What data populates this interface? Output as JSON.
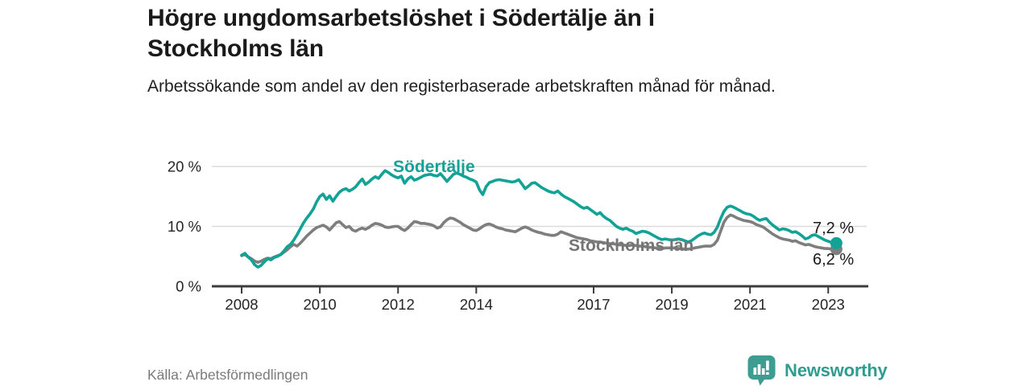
{
  "header": {
    "title": "Högre ungdomsarbetslöshet i Södertälje än i Stockholms län",
    "subtitle": "Arbetssökande som andel av den registerbaserade arbetskraften månad för månad."
  },
  "footer": {
    "source": "Källa: Arbetsförmedlingen",
    "brand_name": "Newsworthy",
    "brand_icon": "newsworthy-bar-chart-speech-bubble-icon"
  },
  "colors": {
    "sodertalje_line": "#12a296",
    "stockholm_line": "#7e7e7e",
    "stockholm_label": "#757575",
    "grid": "#dcdcdc",
    "axis": "#3c3c3c",
    "tick_text": "#242424",
    "title_text": "#1a1a1a",
    "source_text": "#7a7a7a",
    "brand_teal": "#2f9c90"
  },
  "chart_data": {
    "type": "line",
    "title": "Högre ungdomsarbetslöshet i Södertälje än i Stockholms län",
    "subtitle": "Arbetssökande som andel av den registerbaserade arbetskraften månad för månad.",
    "xlabel": "",
    "ylabel": "",
    "y_unit": "%",
    "grid": "horizontal",
    "legend_position": "inline-labels-on-lines",
    "ylim": [
      0,
      22
    ],
    "xlim": [
      2007.25,
      2024.0
    ],
    "x_start": 2008.0,
    "points_per_year": 12,
    "x_end": 2023.1667,
    "x_ticks": [
      "2008",
      "2010",
      "2012",
      "2014",
      "2017",
      "2019",
      "2021",
      "2023"
    ],
    "x_tick_years": [
      2008,
      2010,
      2012,
      2014,
      2017,
      2019,
      2021,
      2023
    ],
    "y_ticks": [
      {
        "value": 0,
        "label": "0 %"
      },
      {
        "value": 10,
        "label": "10 %"
      },
      {
        "value": 20,
        "label": "20 %"
      }
    ],
    "series": [
      {
        "name": "Södertälje",
        "color": "#12a296",
        "end_value": 7.2,
        "end_label": "7,2 %",
        "values": [
          5.2,
          5.5,
          4.9,
          4.4,
          3.6,
          3.2,
          3.5,
          4.1,
          4.6,
          4.4,
          4.8,
          5.0,
          5.3,
          5.9,
          6.6,
          7.0,
          7.7,
          8.6,
          9.6,
          10.6,
          11.4,
          12.1,
          12.9,
          14.1,
          15.0,
          15.4,
          14.5,
          15.1,
          14.2,
          15.0,
          15.7,
          16.1,
          16.3,
          15.9,
          16.2,
          16.6,
          17.3,
          17.9,
          17.0,
          17.4,
          17.9,
          18.3,
          18.0,
          18.7,
          19.3,
          19.0,
          18.6,
          18.3,
          18.1,
          18.4,
          17.2,
          17.9,
          18.3,
          17.7,
          17.9,
          18.2,
          18.5,
          18.6,
          18.7,
          18.5,
          18.4,
          18.8,
          18.2,
          17.5,
          18.1,
          18.7,
          18.9,
          18.7,
          18.4,
          18.2,
          17.9,
          17.7,
          17.4,
          16.1,
          15.3,
          16.6,
          17.3,
          17.5,
          17.7,
          17.8,
          17.7,
          17.6,
          17.5,
          17.4,
          17.5,
          17.8,
          17.1,
          16.3,
          16.7,
          17.2,
          17.3,
          16.9,
          16.5,
          16.2,
          15.9,
          15.7,
          15.6,
          15.9,
          15.4,
          15.0,
          14.7,
          14.4,
          14.1,
          13.7,
          13.3,
          13.0,
          13.2,
          12.8,
          12.4,
          12.0,
          12.3,
          11.7,
          11.3,
          11.0,
          10.5,
          10.0,
          9.7,
          9.5,
          9.7,
          9.4,
          9.2,
          8.8,
          9.0,
          9.2,
          9.1,
          8.9,
          8.6,
          8.3,
          8.0,
          7.8,
          7.9,
          7.8,
          7.7,
          7.8,
          7.9,
          7.8,
          7.6,
          7.4,
          7.6,
          8.0,
          8.4,
          8.7,
          8.9,
          8.7,
          8.6,
          9.0,
          9.9,
          11.3,
          12.5,
          13.2,
          13.4,
          13.2,
          12.9,
          12.6,
          12.3,
          12.1,
          12.0,
          11.7,
          11.3,
          11.0,
          11.2,
          11.3,
          10.7,
          10.2,
          9.8,
          9.4,
          9.6,
          9.5,
          9.3,
          9.0,
          9.1,
          8.8,
          8.4,
          7.9,
          8.1,
          8.5,
          8.6,
          8.3,
          8.0,
          7.7,
          7.5,
          7.3,
          7.2
        ]
      },
      {
        "name": "Stockholms län",
        "color": "#7e7e7e",
        "end_value": 6.2,
        "end_label": "6,2 %",
        "values": [
          5.1,
          5.3,
          4.9,
          4.6,
          4.2,
          4.0,
          4.2,
          4.5,
          4.7,
          4.6,
          4.9,
          5.1,
          5.3,
          5.7,
          6.1,
          6.6,
          7.0,
          6.7,
          7.2,
          7.8,
          8.4,
          8.9,
          9.4,
          9.8,
          10.0,
          10.2,
          9.9,
          9.4,
          10.0,
          10.6,
          10.8,
          10.3,
          9.8,
          10.0,
          9.4,
          9.2,
          9.5,
          9.7,
          9.5,
          9.8,
          10.2,
          10.5,
          10.4,
          10.2,
          9.9,
          9.8,
          9.9,
          10.0,
          10.0,
          9.6,
          9.3,
          9.7,
          10.3,
          10.8,
          10.7,
          10.5,
          10.5,
          10.4,
          10.3,
          10.1,
          9.7,
          9.9,
          10.6,
          11.1,
          11.4,
          11.3,
          11.0,
          10.7,
          10.3,
          10.0,
          9.7,
          9.4,
          9.3,
          9.6,
          10.0,
          10.3,
          10.4,
          10.2,
          9.9,
          9.7,
          9.6,
          9.4,
          9.3,
          9.2,
          9.1,
          9.4,
          9.7,
          9.9,
          9.7,
          9.4,
          9.2,
          9.0,
          8.9,
          8.7,
          8.6,
          8.5,
          8.5,
          8.7,
          9.1,
          8.9,
          8.7,
          8.5,
          8.3,
          8.1,
          8.0,
          7.9,
          7.8,
          7.6,
          7.5,
          7.4,
          7.4,
          7.3,
          7.2,
          7.1,
          7.1,
          7.0,
          6.9,
          6.9,
          6.8,
          6.8,
          6.9,
          6.8,
          6.7,
          6.7,
          6.6,
          6.5,
          6.5,
          6.4,
          6.4,
          6.3,
          6.4,
          6.4,
          6.4,
          6.4,
          6.3,
          6.3,
          6.2,
          6.2,
          6.3,
          6.4,
          6.5,
          6.6,
          6.7,
          6.7,
          6.7,
          7.0,
          7.7,
          9.2,
          10.7,
          11.5,
          11.9,
          11.7,
          11.4,
          11.2,
          11.0,
          10.9,
          10.8,
          10.6,
          10.3,
          10.1,
          9.9,
          9.5,
          9.1,
          8.7,
          8.4,
          8.1,
          7.9,
          7.8,
          7.7,
          7.5,
          7.6,
          7.3,
          7.1,
          6.9,
          7.0,
          6.8,
          6.6,
          6.5,
          6.4,
          6.3,
          6.3,
          6.2,
          6.2
        ]
      }
    ]
  }
}
